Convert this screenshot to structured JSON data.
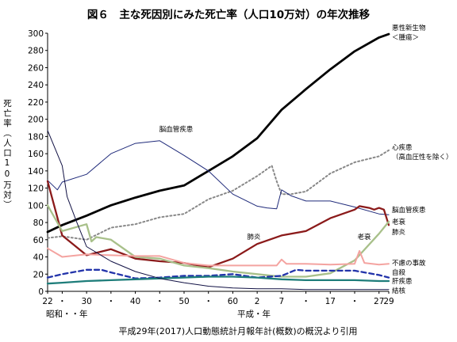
{
  "chart_data": {
    "type": "line",
    "title": "図６　主な死因別にみた死亡率（人口10万対）の年次推移",
    "ylabel": "死亡率（人口10万対）",
    "caption": "平成29年(2017)人口動態統計月報年計(概数)の概況より引用",
    "ylim": [
      0,
      300
    ],
    "yticks": [
      0,
      20,
      40,
      60,
      80,
      100,
      120,
      140,
      160,
      180,
      200,
      220,
      240,
      260,
      280,
      300
    ],
    "xlim": [
      1947,
      2017
    ],
    "xticks": [
      {
        "year": 1947,
        "label": "22"
      },
      {
        "year": 1950,
        "label": "・"
      },
      {
        "year": 1955,
        "label": "30"
      },
      {
        "year": 1960,
        "label": "・"
      },
      {
        "year": 1965,
        "label": "40"
      },
      {
        "year": 1970,
        "label": "・"
      },
      {
        "year": 1975,
        "label": "50"
      },
      {
        "year": 1980,
        "label": "・"
      },
      {
        "year": 1985,
        "label": "60"
      },
      {
        "year": 1990,
        "label": "2"
      },
      {
        "year": 1995,
        "label": "7"
      },
      {
        "year": 2000,
        "label": "・"
      },
      {
        "year": 2005,
        "label": "17"
      },
      {
        "year": 2010,
        "label": "・"
      },
      {
        "year": 2015,
        "label": "27"
      },
      {
        "year": 2017,
        "label": "29"
      }
    ],
    "era_labels": {
      "showa": "昭和・・年",
      "heisei": "平成・年"
    },
    "legend_placement": "right-end labels",
    "series": [
      {
        "name": "悪性新生物\n＜腫瘍＞",
        "color": "#000000",
        "style": "solid",
        "width": 2.8,
        "x": [
          1947,
          1950,
          1955,
          1960,
          1965,
          1970,
          1975,
          1980,
          1985,
          1990,
          1995,
          2000,
          2005,
          2010,
          2015,
          2017
        ],
        "y": [
          69,
          77,
          88,
          100,
          109,
          117,
          123,
          140,
          157,
          178,
          211,
          235,
          258,
          279,
          295,
          299
        ]
      },
      {
        "name": "心疾患\n（高血圧性を除く）",
        "color": "#888888",
        "style": "dotted",
        "width": 2,
        "x": [
          1947,
          1950,
          1955,
          1960,
          1965,
          1970,
          1975,
          1980,
          1985,
          1990,
          1993,
          1994,
          1995,
          1997,
          2000,
          2005,
          2010,
          2015,
          2017
        ],
        "y": [
          62,
          64,
          60,
          74,
          78,
          86,
          90,
          107,
          117,
          134,
          146,
          128,
          113,
          113,
          116,
          137,
          150,
          157,
          164
        ]
      },
      {
        "name": "脳血管疾患",
        "color": "#1f2a7a",
        "style": "solid",
        "width": 1,
        "x": [
          1947,
          1949,
          1950,
          1955,
          1960,
          1965,
          1970,
          1975,
          1980,
          1985,
          1990,
          1992,
          1994,
          1995,
          1997,
          2000,
          2005,
          2010,
          2015,
          2017
        ],
        "y": [
          129,
          118,
          127,
          136,
          160,
          172,
          175,
          158,
          140,
          113,
          99,
          97,
          96,
          118,
          111,
          105,
          105,
          98,
          90,
          89
        ]
      },
      {
        "name": "肺炎",
        "color": "#8b1a1a",
        "style": "solid",
        "width": 2.3,
        "x": [
          1947,
          1950,
          1955,
          1960,
          1965,
          1970,
          1975,
          1980,
          1985,
          1990,
          1995,
          2000,
          2005,
          2010,
          2011,
          2013,
          2014,
          2015,
          2016,
          2017
        ],
        "y": [
          128,
          65,
          42,
          49,
          38,
          35,
          33,
          28,
          38,
          55,
          65,
          70,
          85,
          95,
          99,
          97,
          95,
          97,
          95,
          77
        ]
      },
      {
        "name": "老衰",
        "color": "#a8c08a",
        "style": "solid",
        "width": 2.3,
        "x": [
          1947,
          1950,
          1955,
          1956,
          1957,
          1960,
          1965,
          1970,
          1975,
          1980,
          1985,
          1990,
          1995,
          2000,
          2005,
          2010,
          2015,
          2017
        ],
        "y": [
          100,
          70,
          78,
          58,
          63,
          60,
          40,
          38,
          30,
          27,
          23,
          20,
          17,
          17,
          21,
          36,
          67,
          81
        ]
      },
      {
        "name": "不慮の事故",
        "color": "#f4a3a0",
        "style": "solid",
        "width": 2,
        "x": [
          1947,
          1950,
          1955,
          1960,
          1965,
          1970,
          1975,
          1980,
          1985,
          1990,
          1994,
          1995,
          1996,
          2000,
          2005,
          2010,
          2011,
          2012,
          2015,
          2017
        ],
        "y": [
          50,
          40,
          43,
          42,
          41,
          41,
          33,
          30,
          30,
          30,
          30,
          37,
          32,
          32,
          31,
          32,
          47,
          33,
          31,
          32
        ]
      },
      {
        "name": "自殺",
        "color": "#2233aa",
        "style": "dashed",
        "width": 2.3,
        "x": [
          1947,
          1950,
          1955,
          1958,
          1960,
          1965,
          1970,
          1975,
          1980,
          1985,
          1990,
          1995,
          1998,
          2000,
          2005,
          2010,
          2015,
          2017
        ],
        "y": [
          16,
          20,
          25,
          25,
          22,
          15,
          16,
          18,
          18,
          20,
          16,
          18,
          25,
          24,
          24,
          24,
          19,
          16
        ]
      },
      {
        "name": "肝疾患",
        "color": "#1e7d7a",
        "style": "solid",
        "width": 2.3,
        "x": [
          1947,
          1950,
          1955,
          1960,
          1965,
          1970,
          1975,
          1980,
          1985,
          1990,
          1995,
          2000,
          2005,
          2010,
          2015,
          2017
        ],
        "y": [
          9,
          10,
          12,
          13,
          14,
          15,
          16,
          17,
          17,
          16,
          14,
          13,
          13,
          13,
          12,
          12
        ]
      },
      {
        "name": "結核",
        "color": "#111144",
        "style": "solid",
        "width": 1,
        "x": [
          1947,
          1950,
          1951,
          1953,
          1955,
          1960,
          1965,
          1970,
          1975,
          1980,
          1985,
          1990,
          1995,
          2000,
          2005,
          2010,
          2015,
          2017
        ],
        "y": [
          187,
          146,
          110,
          80,
          52,
          35,
          23,
          15,
          10,
          6,
          4,
          3,
          3,
          2,
          2,
          2,
          2,
          2
        ]
      }
    ]
  }
}
